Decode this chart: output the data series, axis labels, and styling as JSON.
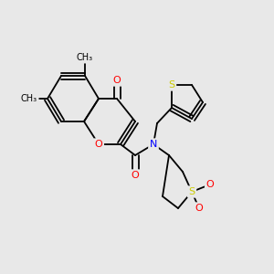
{
  "background_color": "#e8e8e8",
  "atom_colors": {
    "O": "#ff0000",
    "N": "#0000ff",
    "S": "#cccc00",
    "C": "#000000"
  },
  "bond_color": "#000000",
  "font_size": 7.5,
  "figsize": [
    3.0,
    3.0
  ],
  "dpi": 100
}
